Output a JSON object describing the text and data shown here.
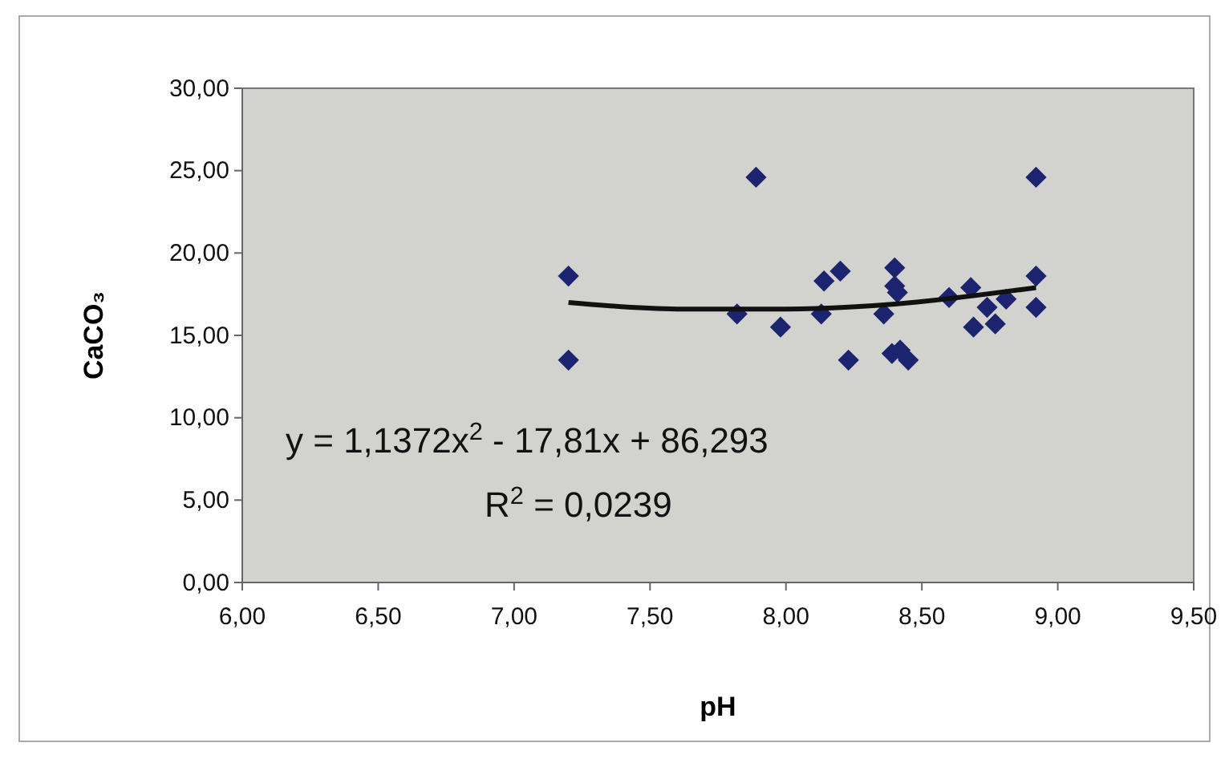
{
  "chart_data": {
    "type": "scatter",
    "xlabel": "pH",
    "ylabel": "CaCO₃",
    "xlim": [
      6,
      9.5
    ],
    "ylim": [
      0,
      30
    ],
    "xticks": [
      {
        "value": 6,
        "label": "6,00"
      },
      {
        "value": 6.5,
        "label": "6,50"
      },
      {
        "value": 7,
        "label": "7,00"
      },
      {
        "value": 7.5,
        "label": "7,50"
      },
      {
        "value": 8,
        "label": "8,00"
      },
      {
        "value": 8.5,
        "label": "8,50"
      },
      {
        "value": 9,
        "label": "9,00"
      },
      {
        "value": 9.5,
        "label": "9,50"
      }
    ],
    "yticks": [
      {
        "value": 0,
        "label": "0,00"
      },
      {
        "value": 5,
        "label": "5,00"
      },
      {
        "value": 10,
        "label": "10,00"
      },
      {
        "value": 15,
        "label": "15,00"
      },
      {
        "value": 20,
        "label": "20,00"
      },
      {
        "value": 25,
        "label": "25,00"
      },
      {
        "value": 30,
        "label": "30,00"
      }
    ],
    "grid": false,
    "marker": "diamond",
    "series": [
      {
        "type": "scatter",
        "color": "#1c2470",
        "x": [
          7.2,
          7.2,
          7.89,
          7.82,
          7.98,
          8.14,
          8.2,
          8.13,
          8.23,
          8.4,
          8.4,
          8.41,
          8.36,
          8.39,
          8.42,
          8.45,
          8.6,
          8.68,
          8.74,
          8.69,
          8.77,
          8.81,
          8.92,
          8.92,
          8.92
        ],
        "values": [
          18.6,
          13.5,
          24.6,
          16.3,
          15.5,
          18.3,
          18.9,
          16.3,
          13.5,
          19.1,
          18.0,
          17.6,
          16.3,
          13.9,
          14.1,
          13.5,
          17.3,
          17.9,
          16.7,
          15.5,
          15.7,
          17.2,
          18.6,
          24.6,
          16.7
        ]
      },
      {
        "type": "line",
        "color": "#111111",
        "line_style": "solid",
        "marker": "none",
        "x": [
          7.2,
          7.6,
          7.8,
          8.0,
          8.4,
          8.92
        ],
        "values": [
          17.0,
          16.6,
          16.6,
          16.6,
          16.9,
          17.9
        ]
      }
    ],
    "annotations": [
      "y = 1,1372x$^{2}$ - 17,81x + 86,293",
      "R$^{2}$ = 0,0239"
    ]
  }
}
